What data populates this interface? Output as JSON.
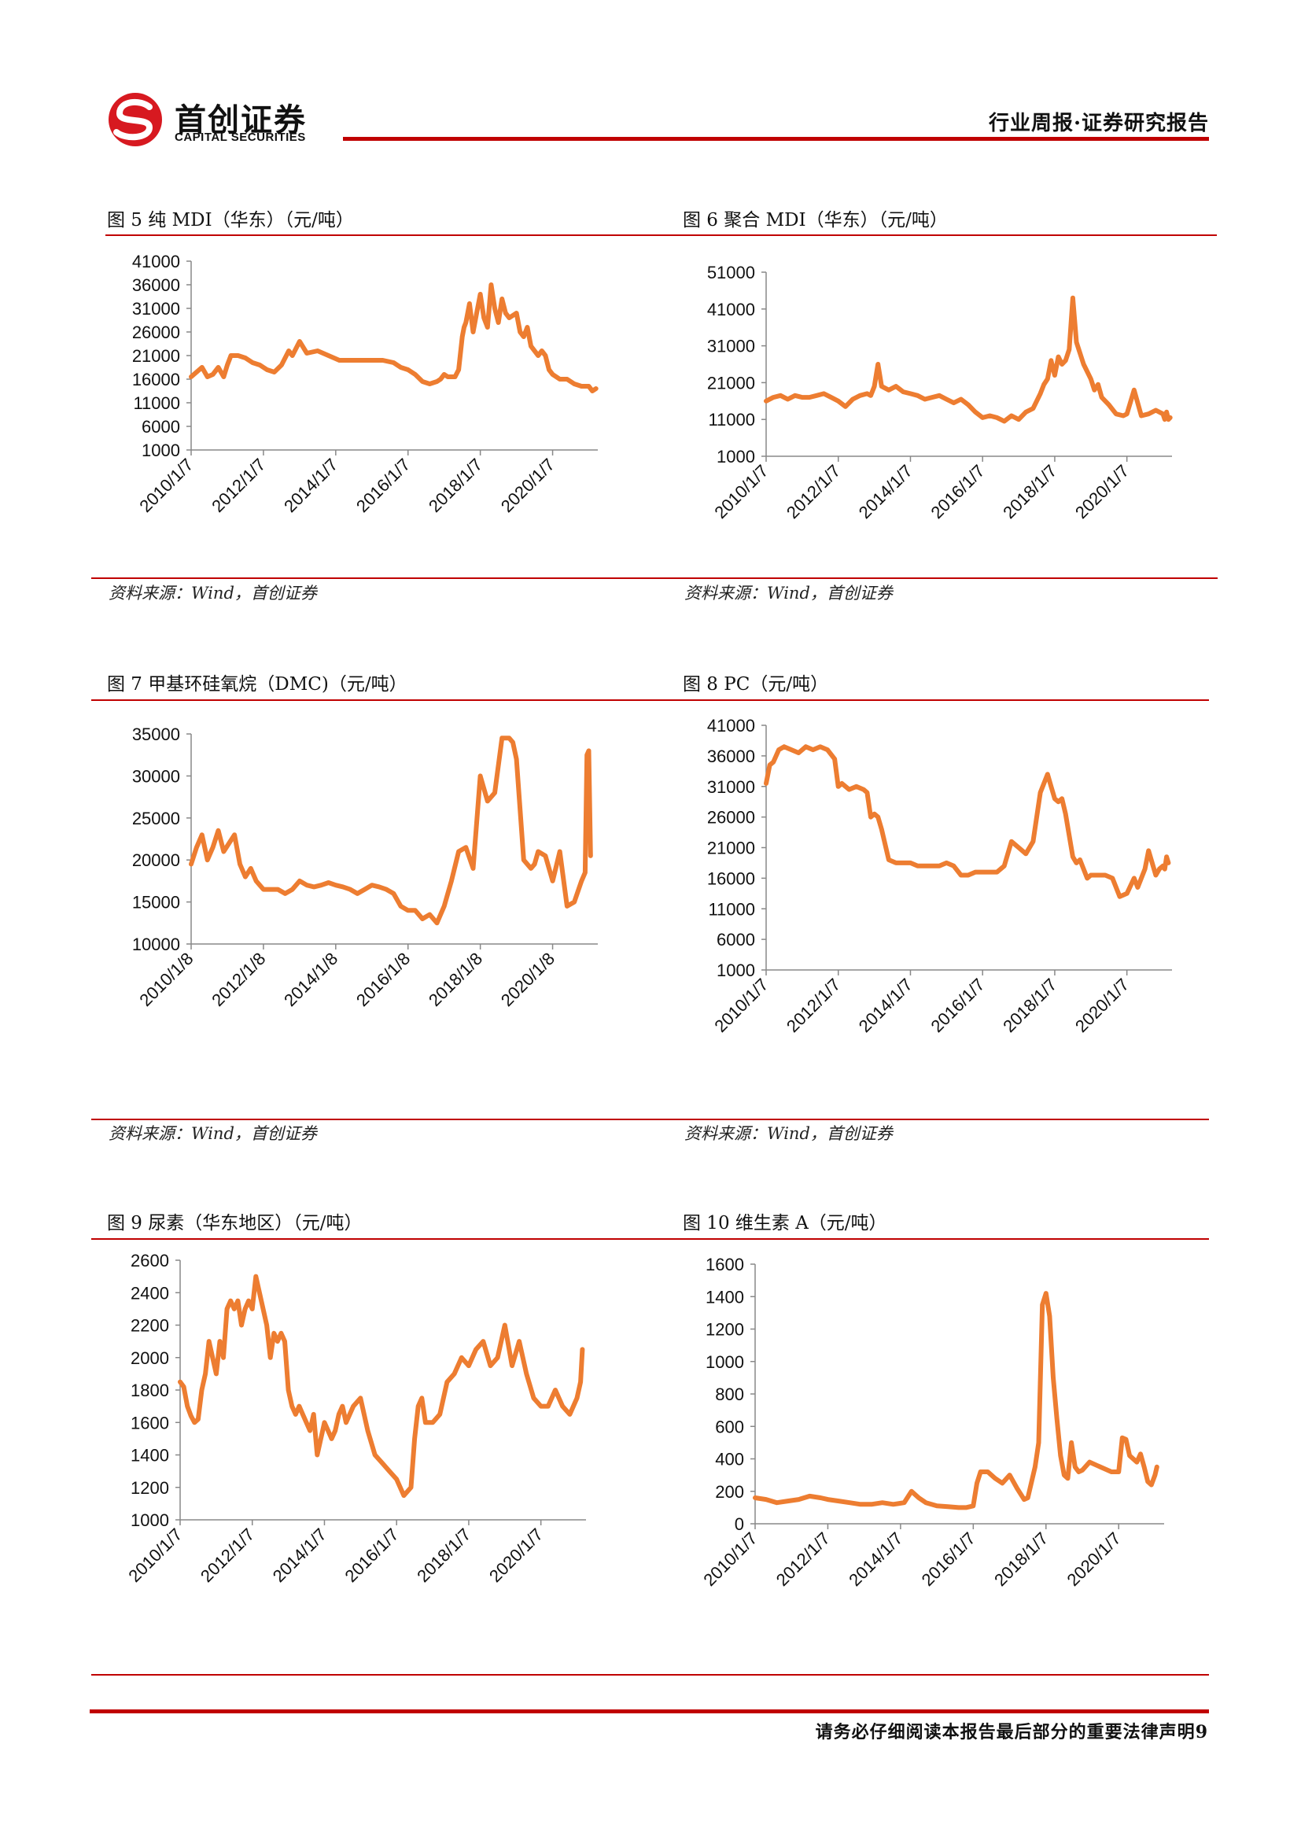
{
  "header": {
    "logo_cn": "首创证券",
    "logo_en": "CAPITAL SECURITIES",
    "report_type": "行业周报·证券研究报告"
  },
  "footer": {
    "disclaimer": "请务必仔细阅读本报告最后部分的重要法律声明",
    "page_number": "9"
  },
  "colors": {
    "accent": "#c00000",
    "series": "#ed7d31"
  },
  "charts": [
    {
      "figure_title": "图 5 纯 MDI（华东）（元/吨）",
      "source": "资料来源：Wind，首创证券"
    },
    {
      "figure_title": "图 6 聚合 MDI（华东）（元/吨）",
      "source": "资料来源：Wind，首创证券"
    },
    {
      "figure_title": "图 7 甲基环硅氧烷（DMC)（元/吨）",
      "source": "资料来源：Wind，首创证券"
    },
    {
      "figure_title": "图 8 PC（元/吨）",
      "source": "资料来源：Wind，首创证券"
    },
    {
      "figure_title": "图 9 尿素（华东地区）（元/吨）",
      "source": "资料来源：Wind，首创证券"
    },
    {
      "figure_title": "图 10 维生素 A（元/吨）",
      "source": "资料来源：Wind，首创证券"
    }
  ],
  "chart_data": [
    {
      "type": "line",
      "color": "#ed7d31",
      "grid": false,
      "legend": "none",
      "title": "图 5 纯 MDI（华东）（元/吨）",
      "ylim": [
        1000,
        41000
      ],
      "yticks": [
        "1000",
        "6000",
        "11000",
        "16000",
        "21000",
        "26000",
        "31000",
        "36000",
        "41000"
      ],
      "xlim": [
        2010.0,
        2021.25
      ],
      "xticks": [
        {
          "value": 2010.0,
          "label": "2010/1/7"
        },
        {
          "value": 2012.0,
          "label": "2012/1/7"
        },
        {
          "value": 2014.0,
          "label": "2014/1/7"
        },
        {
          "value": 2016.0,
          "label": "2016/1/7"
        },
        {
          "value": 2018.0,
          "label": "2018/1/7"
        },
        {
          "value": 2020.0,
          "label": "2020/1/7"
        }
      ],
      "x": [
        2010.0,
        2010.15,
        2010.3,
        2010.45,
        2010.6,
        2010.75,
        2010.9,
        2011.0,
        2011.1,
        2011.3,
        2011.5,
        2011.7,
        2011.9,
        2012.1,
        2012.3,
        2012.5,
        2012.7,
        2012.8,
        2012.9,
        2013.0,
        2013.2,
        2013.5,
        2013.8,
        2014.1,
        2014.4,
        2014.7,
        2015.0,
        2015.3,
        2015.6,
        2015.8,
        2016.0,
        2016.2,
        2016.4,
        2016.6,
        2016.8,
        2016.9,
        2017.0,
        2017.1,
        2017.2,
        2017.3,
        2017.4,
        2017.5,
        2017.55,
        2017.6,
        2017.7,
        2017.8,
        2017.9,
        2018.0,
        2018.1,
        2018.2,
        2018.3,
        2018.4,
        2018.5,
        2018.6,
        2018.7,
        2018.8,
        2018.9,
        2019.0,
        2019.1,
        2019.2,
        2019.3,
        2019.4,
        2019.5,
        2019.6,
        2019.7,
        2019.8,
        2019.9,
        2020.0,
        2020.2,
        2020.4,
        2020.6,
        2020.8,
        2021.0,
        2021.1,
        2021.2
      ],
      "values": [
        16500,
        17500,
        18500,
        16500,
        17000,
        18500,
        16500,
        19000,
        21000,
        21000,
        20500,
        19500,
        19000,
        18000,
        17500,
        19000,
        22000,
        21000,
        22500,
        24000,
        21500,
        22000,
        21000,
        20000,
        20000,
        20000,
        20000,
        20000,
        19500,
        18500,
        18000,
        17000,
        15500,
        15000,
        15500,
        16000,
        17000,
        16500,
        16500,
        16500,
        18000,
        25000,
        27000,
        28000,
        32000,
        26000,
        30000,
        34000,
        29000,
        27000,
        36000,
        31000,
        28000,
        33000,
        30000,
        29000,
        29500,
        30000,
        26000,
        25000,
        27000,
        23000,
        22000,
        21000,
        22000,
        21000,
        18000,
        17000,
        16000,
        16000,
        15000,
        14500,
        14500,
        13500,
        14000
      ]
    },
    {
      "type": "line",
      "color": "#ed7d31",
      "grid": false,
      "legend": "none",
      "title": "图 6 聚合 MDI（华东）（元/吨）",
      "ylim": [
        1000,
        51000
      ],
      "yticks": [
        "1000",
        "11000",
        "21000",
        "31000",
        "41000",
        "51000"
      ],
      "xlim": [
        2010.0,
        2021.25
      ],
      "xticks": [
        {
          "value": 2010.0,
          "label": "2010/1/7"
        },
        {
          "value": 2012.0,
          "label": "2012/1/7"
        },
        {
          "value": 2014.0,
          "label": "2014/1/7"
        },
        {
          "value": 2016.0,
          "label": "2016/1/7"
        },
        {
          "value": 2018.0,
          "label": "2018/1/7"
        },
        {
          "value": 2020.0,
          "label": "2020/1/7"
        }
      ],
      "x": [
        2010.0,
        2010.2,
        2010.4,
        2010.6,
        2010.8,
        2011.0,
        2011.2,
        2011.4,
        2011.6,
        2011.8,
        2012.0,
        2012.2,
        2012.4,
        2012.6,
        2012.8,
        2012.9,
        2013.0,
        2013.1,
        2013.2,
        2013.4,
        2013.6,
        2013.8,
        2014.0,
        2014.2,
        2014.4,
        2014.6,
        2014.8,
        2015.0,
        2015.2,
        2015.4,
        2015.6,
        2015.8,
        2016.0,
        2016.2,
        2016.4,
        2016.6,
        2016.8,
        2017.0,
        2017.2,
        2017.4,
        2017.6,
        2017.7,
        2017.8,
        2017.9,
        2018.0,
        2018.1,
        2018.2,
        2018.3,
        2018.4,
        2018.5,
        2018.6,
        2018.8,
        2019.0,
        2019.1,
        2019.2,
        2019.3,
        2019.5,
        2019.7,
        2019.9,
        2020.0,
        2020.2,
        2020.4,
        2020.6,
        2020.8,
        2021.0,
        2021.05,
        2021.1,
        2021.15,
        2021.2
      ],
      "values": [
        16000,
        17000,
        17500,
        16500,
        17500,
        17000,
        17000,
        17500,
        18000,
        17000,
        16000,
        14500,
        16500,
        17500,
        18000,
        17500,
        20000,
        26000,
        20000,
        19000,
        20000,
        18500,
        18000,
        17500,
        16500,
        17000,
        17500,
        16500,
        15500,
        16500,
        15000,
        13000,
        11500,
        12000,
        11500,
        10500,
        12000,
        11000,
        13000,
        14000,
        18000,
        20500,
        22000,
        27000,
        23000,
        28000,
        26000,
        27000,
        30000,
        44000,
        32000,
        26000,
        22000,
        19000,
        20500,
        17000,
        15000,
        12500,
        12000,
        12500,
        19000,
        12000,
        12500,
        13500,
        12500,
        11000,
        13000,
        11000,
        11500
      ]
    },
    {
      "type": "line",
      "color": "#ed7d31",
      "grid": false,
      "legend": "none",
      "title": "图 7 甲基环硅氧烷（DMC)（元/吨）",
      "ylim": [
        10000,
        35000
      ],
      "yticks": [
        "10000",
        "15000",
        "20000",
        "25000",
        "30000",
        "35000"
      ],
      "xlim": [
        2010.0,
        2021.25
      ],
      "xticks": [
        {
          "value": 2010.0,
          "label": "2010/1/8"
        },
        {
          "value": 2012.0,
          "label": "2012/1/8"
        },
        {
          "value": 2014.0,
          "label": "2014/1/8"
        },
        {
          "value": 2016.0,
          "label": "2016/1/8"
        },
        {
          "value": 2018.0,
          "label": "2018/1/8"
        },
        {
          "value": 2020.0,
          "label": "2020/1/8"
        }
      ],
      "x": [
        2010.0,
        2010.15,
        2010.3,
        2010.45,
        2010.6,
        2010.75,
        2010.9,
        2011.05,
        2011.2,
        2011.35,
        2011.5,
        2011.65,
        2011.8,
        2012.0,
        2012.2,
        2012.4,
        2012.6,
        2012.8,
        2013.0,
        2013.2,
        2013.4,
        2013.6,
        2013.8,
        2014.0,
        2014.2,
        2014.4,
        2014.6,
        2014.8,
        2015.0,
        2015.2,
        2015.4,
        2015.6,
        2015.8,
        2016.0,
        2016.2,
        2016.4,
        2016.6,
        2016.8,
        2017.0,
        2017.2,
        2017.4,
        2017.6,
        2017.8,
        2018.0,
        2018.2,
        2018.4,
        2018.6,
        2018.8,
        2018.9,
        2019.0,
        2019.2,
        2019.4,
        2019.5,
        2019.6,
        2019.8,
        2020.0,
        2020.2,
        2020.4,
        2020.6,
        2020.8,
        2020.9,
        2020.95,
        2021.0,
        2021.05
      ],
      "values": [
        19500,
        21500,
        23000,
        20000,
        21500,
        23500,
        21000,
        22000,
        23000,
        19500,
        18000,
        19000,
        17500,
        16500,
        16500,
        16500,
        16000,
        16500,
        17500,
        17000,
        16800,
        17000,
        17300,
        17000,
        16800,
        16500,
        16000,
        16500,
        17000,
        16800,
        16500,
        16000,
        14500,
        14000,
        14000,
        13000,
        13500,
        12500,
        14500,
        17500,
        21000,
        21500,
        19000,
        30000,
        27000,
        28000,
        34500,
        34500,
        34000,
        32000,
        20000,
        19000,
        19500,
        21000,
        20500,
        17500,
        21000,
        14500,
        15000,
        17500,
        18500,
        32500,
        33000,
        20500
      ]
    },
    {
      "type": "line",
      "color": "#ed7d31",
      "grid": false,
      "legend": "none",
      "title": "图 8 PC（元/吨）",
      "ylim": [
        1000,
        41000
      ],
      "yticks": [
        "1000",
        "6000",
        "11000",
        "16000",
        "21000",
        "26000",
        "31000",
        "36000",
        "41000"
      ],
      "xlim": [
        2010.0,
        2021.25
      ],
      "xticks": [
        {
          "value": 2010.0,
          "label": "2010/1/7"
        },
        {
          "value": 2012.0,
          "label": "2012/1/7"
        },
        {
          "value": 2014.0,
          "label": "2014/1/7"
        },
        {
          "value": 2016.0,
          "label": "2016/1/7"
        },
        {
          "value": 2018.0,
          "label": "2018/1/7"
        },
        {
          "value": 2020.0,
          "label": "2020/1/7"
        }
      ],
      "x": [
        2010.0,
        2010.1,
        2010.2,
        2010.35,
        2010.5,
        2010.7,
        2010.9,
        2011.1,
        2011.3,
        2011.5,
        2011.7,
        2011.9,
        2012.0,
        2012.1,
        2012.3,
        2012.5,
        2012.7,
        2012.8,
        2012.9,
        2013.0,
        2013.1,
        2013.2,
        2013.4,
        2013.6,
        2013.8,
        2014.0,
        2014.2,
        2014.4,
        2014.6,
        2014.8,
        2015.0,
        2015.2,
        2015.4,
        2015.6,
        2015.8,
        2016.0,
        2016.2,
        2016.4,
        2016.6,
        2016.8,
        2017.0,
        2017.2,
        2017.4,
        2017.6,
        2017.8,
        2017.9,
        2018.0,
        2018.1,
        2018.2,
        2018.3,
        2018.4,
        2018.5,
        2018.6,
        2018.7,
        2018.8,
        2018.9,
        2019.0,
        2019.2,
        2019.4,
        2019.6,
        2019.8,
        2020.0,
        2020.2,
        2020.3,
        2020.4,
        2020.5,
        2020.6,
        2020.8,
        2020.9,
        2021.0,
        2021.05,
        2021.1,
        2021.15
      ],
      "values": [
        31500,
        34500,
        35000,
        37000,
        37500,
        37000,
        36500,
        37500,
        37000,
        37500,
        37000,
        35500,
        31000,
        31500,
        30500,
        31000,
        30500,
        30000,
        26000,
        26500,
        26000,
        24000,
        19000,
        18500,
        18500,
        18500,
        18000,
        18000,
        18000,
        18000,
        18500,
        18000,
        16500,
        16500,
        17000,
        17000,
        17000,
        17000,
        18000,
        22000,
        21000,
        20000,
        22000,
        30000,
        33000,
        31000,
        29000,
        28500,
        29000,
        26500,
        23000,
        19500,
        18500,
        19000,
        17500,
        16000,
        16500,
        16500,
        16500,
        16000,
        13000,
        13500,
        16000,
        14500,
        16000,
        17500,
        20500,
        16500,
        17500,
        18000,
        17500,
        19500,
        18500
      ]
    },
    {
      "type": "line",
      "color": "#ed7d31",
      "grid": false,
      "legend": "none",
      "title": "图 9 尿素（华东地区）（元/吨）",
      "ylim": [
        1000,
        2600
      ],
      "yticks": [
        "1000",
        "1200",
        "1400",
        "1600",
        "1800",
        "2000",
        "2200",
        "2400",
        "2600"
      ],
      "xlim": [
        2010.0,
        2021.25
      ],
      "xticks": [
        {
          "value": 2010.0,
          "label": "2010/1/7"
        },
        {
          "value": 2012.0,
          "label": "2012/1/7"
        },
        {
          "value": 2014.0,
          "label": "2014/1/7"
        },
        {
          "value": 2016.0,
          "label": "2016/1/7"
        },
        {
          "value": 2018.0,
          "label": "2018/1/7"
        },
        {
          "value": 2020.0,
          "label": "2020/1/7"
        }
      ],
      "x": [
        2010.0,
        2010.1,
        2010.2,
        2010.3,
        2010.4,
        2010.5,
        2010.6,
        2010.7,
        2010.8,
        2010.9,
        2011.0,
        2011.1,
        2011.2,
        2011.3,
        2011.4,
        2011.5,
        2011.6,
        2011.7,
        2011.8,
        2011.9,
        2012.0,
        2012.1,
        2012.2,
        2012.3,
        2012.4,
        2012.5,
        2012.6,
        2012.7,
        2012.8,
        2012.9,
        2013.0,
        2013.1,
        2013.2,
        2013.3,
        2013.4,
        2013.5,
        2013.6,
        2013.7,
        2013.8,
        2013.9,
        2014.0,
        2014.1,
        2014.2,
        2014.3,
        2014.4,
        2014.5,
        2014.6,
        2014.8,
        2015.0,
        2015.2,
        2015.4,
        2015.6,
        2015.8,
        2016.0,
        2016.2,
        2016.4,
        2016.5,
        2016.6,
        2016.7,
        2016.8,
        2017.0,
        2017.2,
        2017.4,
        2017.6,
        2017.8,
        2018.0,
        2018.2,
        2018.4,
        2018.6,
        2018.8,
        2019.0,
        2019.2,
        2019.4,
        2019.6,
        2019.8,
        2020.0,
        2020.2,
        2020.4,
        2020.6,
        2020.8,
        2021.0,
        2021.1,
        2021.15
      ],
      "values": [
        1850,
        1820,
        1700,
        1640,
        1600,
        1620,
        1800,
        1900,
        2100,
        2000,
        1900,
        2100,
        2000,
        2300,
        2350,
        2300,
        2350,
        2200,
        2300,
        2350,
        2300,
        2500,
        2400,
        2300,
        2200,
        2000,
        2150,
        2100,
        2150,
        2100,
        1800,
        1700,
        1650,
        1700,
        1650,
        1600,
        1550,
        1650,
        1400,
        1500,
        1600,
        1550,
        1500,
        1550,
        1650,
        1700,
        1600,
        1700,
        1750,
        1550,
        1400,
        1350,
        1300,
        1250,
        1150,
        1200,
        1500,
        1700,
        1750,
        1600,
        1600,
        1650,
        1850,
        1900,
        2000,
        1950,
        2050,
        2100,
        1950,
        2000,
        2200,
        1950,
        2100,
        1900,
        1750,
        1700,
        1700,
        1800,
        1700,
        1650,
        1750,
        1850,
        2050
      ]
    },
    {
      "type": "line",
      "color": "#ed7d31",
      "grid": false,
      "legend": "none",
      "title": "图 10 维生素 A（元/吨）",
      "ylim": [
        0,
        1600
      ],
      "yticks": [
        "0",
        "200",
        "400",
        "600",
        "800",
        "1000",
        "1200",
        "1400",
        "1600"
      ],
      "xlim": [
        2010.0,
        2021.25
      ],
      "xticks": [
        {
          "value": 2010.0,
          "label": "2010/1/7"
        },
        {
          "value": 2012.0,
          "label": "2012/1/7"
        },
        {
          "value": 2014.0,
          "label": "2014/1/7"
        },
        {
          "value": 2016.0,
          "label": "2016/1/7"
        },
        {
          "value": 2018.0,
          "label": "2018/1/7"
        },
        {
          "value": 2020.0,
          "label": "2020/1/7"
        }
      ],
      "x": [
        2010.0,
        2010.3,
        2010.6,
        2010.9,
        2011.2,
        2011.5,
        2011.8,
        2012.0,
        2012.3,
        2012.6,
        2012.9,
        2013.2,
        2013.5,
        2013.8,
        2014.1,
        2014.3,
        2014.5,
        2014.7,
        2015.0,
        2015.3,
        2015.6,
        2015.8,
        2016.0,
        2016.1,
        2016.2,
        2016.4,
        2016.6,
        2016.8,
        2017.0,
        2017.2,
        2017.4,
        2017.5,
        2017.7,
        2017.8,
        2017.9,
        2018.0,
        2018.1,
        2018.2,
        2018.3,
        2018.4,
        2018.5,
        2018.6,
        2018.7,
        2018.8,
        2018.9,
        2019.0,
        2019.2,
        2019.4,
        2019.6,
        2019.8,
        2020.0,
        2020.1,
        2020.2,
        2020.3,
        2020.4,
        2020.5,
        2020.6,
        2020.7,
        2020.8,
        2020.9,
        2021.0,
        2021.05
      ],
      "values": [
        160,
        150,
        130,
        140,
        150,
        170,
        160,
        150,
        140,
        130,
        120,
        120,
        130,
        120,
        130,
        200,
        160,
        130,
        110,
        105,
        100,
        100,
        110,
        250,
        320,
        320,
        280,
        250,
        300,
        220,
        150,
        160,
        350,
        500,
        1350,
        1420,
        1280,
        900,
        650,
        420,
        300,
        280,
        500,
        350,
        320,
        330,
        380,
        360,
        340,
        320,
        320,
        530,
        520,
        420,
        400,
        380,
        430,
        350,
        260,
        240,
        300,
        350
      ]
    }
  ]
}
